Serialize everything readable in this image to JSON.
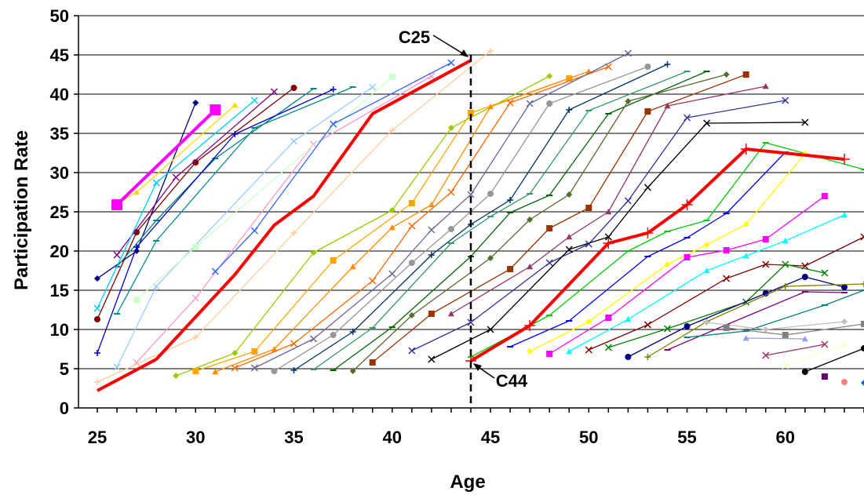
{
  "chart_data": {
    "type": "line",
    "title": "",
    "xlabel": "Age",
    "ylabel": "Participation Rate",
    "xlim": [
      25,
      64
    ],
    "ylim": [
      0,
      50
    ],
    "xticks": [
      25,
      30,
      35,
      40,
      45,
      50,
      55,
      60
    ],
    "yticks": [
      0,
      5,
      10,
      15,
      20,
      25,
      30,
      35,
      40,
      45,
      50
    ],
    "grid": "horizontal",
    "legend": "none",
    "reference_line": {
      "x": 44,
      "style": "dashed",
      "color": "#000000"
    },
    "annotations": [
      {
        "text": "C25",
        "points_to": [
          44,
          44.3
        ]
      },
      {
        "text": "C44",
        "points_to": [
          44,
          6
        ]
      }
    ],
    "series": [
      {
        "color": "#000080",
        "marker": "diamond",
        "points": [
          [
            25,
            16.5
          ],
          [
            27,
            20
          ],
          [
            30,
            38.9
          ]
        ]
      },
      {
        "color": "#FF00FF",
        "marker": "square",
        "points": [
          [
            26,
            25.9
          ],
          [
            31,
            38
          ]
        ],
        "bold": true
      },
      {
        "color": "#FFD700",
        "marker": "triangle",
        "points": [
          [
            26,
            26
          ],
          [
            27,
            27.5
          ],
          [
            32,
            38.6
          ]
        ]
      },
      {
        "color": "#800000",
        "marker": "circle",
        "points": [
          [
            25,
            11.3
          ],
          [
            27,
            22.4
          ],
          [
            30,
            31.3
          ],
          [
            35,
            40.8
          ]
        ]
      },
      {
        "color": "#800080",
        "marker": "x",
        "points": [
          [
            26,
            19.5
          ],
          [
            29,
            29.4
          ],
          [
            34,
            40.3
          ]
        ]
      },
      {
        "color": "#008080",
        "marker": "dash",
        "points": [
          [
            26,
            18
          ],
          [
            28,
            23.9
          ],
          [
            31,
            31.8
          ],
          [
            36,
            40.7
          ]
        ]
      },
      {
        "color": "#00CCFF",
        "marker": "x",
        "points": [
          [
            25,
            12.7
          ],
          [
            28,
            28.7
          ],
          [
            33,
            39.2
          ]
        ]
      },
      {
        "color": "#0000CD",
        "marker": "plus",
        "points": [
          [
            25,
            7
          ],
          [
            27,
            20.5
          ],
          [
            32,
            34.9
          ],
          [
            37,
            40.6
          ]
        ]
      },
      {
        "color": "#008B8B",
        "marker": "dash",
        "points": [
          [
            26,
            12
          ],
          [
            28,
            21.3
          ],
          [
            33,
            35.7
          ],
          [
            38,
            40.9
          ]
        ]
      },
      {
        "color": "#99CCFF",
        "marker": "x",
        "points": [
          [
            26,
            5.2
          ],
          [
            28,
            15.5
          ],
          [
            35,
            34
          ],
          [
            39,
            40.9
          ]
        ]
      },
      {
        "color": "#FF99CC",
        "marker": "x",
        "points": [
          [
            27,
            5.8
          ],
          [
            30,
            14
          ],
          [
            36,
            33.6
          ],
          [
            42,
            42.3
          ]
        ]
      },
      {
        "color": "#CCFFCC",
        "marker": "square",
        "points": [
          [
            27,
            13.8
          ],
          [
            30,
            20.5
          ],
          [
            40,
            42.2
          ]
        ]
      },
      {
        "color": "#FF0000",
        "marker": "none",
        "points": [
          [
            25,
            2.2
          ],
          [
            28,
            6.2
          ],
          [
            32,
            17
          ],
          [
            34,
            23.3
          ],
          [
            36,
            27
          ],
          [
            39,
            37.5
          ],
          [
            44,
            44.3
          ]
        ],
        "bold": true
      },
      {
        "color": "#FFCC99",
        "marker": "plus",
        "points": [
          [
            25,
            3.3
          ],
          [
            30,
            9
          ],
          [
            35,
            22.3
          ],
          [
            40,
            35.4
          ],
          [
            45,
            45.5
          ]
        ]
      },
      {
        "color": "#3366FF",
        "marker": "x",
        "points": [
          [
            31,
            17.4
          ],
          [
            33,
            22.6
          ],
          [
            37,
            36.2
          ],
          [
            43,
            44
          ]
        ]
      },
      {
        "color": "#99CC00",
        "marker": "diamond",
        "points": [
          [
            29,
            4.1
          ],
          [
            32,
            7
          ],
          [
            36,
            19.8
          ],
          [
            40,
            25.2
          ],
          [
            43,
            35.7
          ],
          [
            48,
            42.3
          ]
        ]
      },
      {
        "color": "#FFA500",
        "marker": "square",
        "points": [
          [
            30,
            4.7
          ],
          [
            33,
            7.2
          ],
          [
            37,
            18.8
          ],
          [
            41,
            26.1
          ],
          [
            44,
            37.6
          ],
          [
            49,
            42
          ]
        ]
      },
      {
        "color": "#FF8C00",
        "marker": "triangle",
        "points": [
          [
            31,
            4.6
          ],
          [
            34,
            7.5
          ],
          [
            38,
            18
          ],
          [
            40,
            23
          ],
          [
            42,
            25.9
          ],
          [
            45,
            38.4
          ],
          [
            50,
            42.9
          ]
        ]
      },
      {
        "color": "#FF6600",
        "marker": "x",
        "points": [
          [
            32,
            5.1
          ],
          [
            35,
            8.2
          ],
          [
            39,
            16.2
          ],
          [
            41,
            23.2
          ],
          [
            43,
            27.5
          ],
          [
            46,
            38.9
          ],
          [
            51,
            43.5
          ]
        ]
      },
      {
        "color": "#666699",
        "marker": "x",
        "points": [
          [
            33,
            5.1
          ],
          [
            36,
            8.8
          ],
          [
            40,
            17.1
          ],
          [
            42,
            22.7
          ],
          [
            44,
            27.2
          ],
          [
            47,
            38.8
          ],
          [
            52,
            45.2
          ]
        ]
      },
      {
        "color": "#969696",
        "marker": "circle",
        "points": [
          [
            34,
            4.7
          ],
          [
            37,
            9.3
          ],
          [
            41,
            18.5
          ],
          [
            43,
            22.8
          ],
          [
            45,
            27.3
          ],
          [
            48,
            38.8
          ],
          [
            53,
            43.5
          ]
        ]
      },
      {
        "color": "#003366",
        "marker": "plus",
        "points": [
          [
            35,
            4.8
          ],
          [
            38,
            9.7
          ],
          [
            42,
            19.5
          ],
          [
            44,
            23.4
          ],
          [
            46,
            26.5
          ],
          [
            49,
            38
          ],
          [
            54,
            43.8
          ]
        ]
      },
      {
        "color": "#339966",
        "marker": "dash",
        "points": [
          [
            36,
            4.9
          ],
          [
            39,
            10.2
          ],
          [
            43,
            21
          ],
          [
            45,
            24.4
          ],
          [
            47,
            27.3
          ],
          [
            50,
            37.9
          ],
          [
            55,
            42.9
          ]
        ]
      },
      {
        "color": "#006400",
        "marker": "dash",
        "points": [
          [
            37,
            4.8
          ],
          [
            40,
            10.3
          ],
          [
            44,
            19.3
          ],
          [
            46,
            24.9
          ],
          [
            48,
            27.1
          ],
          [
            51,
            37.5
          ],
          [
            56,
            42.9
          ]
        ]
      },
      {
        "color": "#556B2F",
        "marker": "diamond",
        "points": [
          [
            38,
            4.7
          ],
          [
            41,
            11.8
          ],
          [
            45,
            19.1
          ],
          [
            47,
            24
          ],
          [
            49,
            27.2
          ],
          [
            52,
            39.1
          ],
          [
            57,
            42.5
          ]
        ]
      },
      {
        "color": "#993300",
        "marker": "square",
        "points": [
          [
            39,
            5.8
          ],
          [
            42,
            12
          ],
          [
            46,
            17.7
          ],
          [
            48,
            22.9
          ],
          [
            50,
            25.5
          ],
          [
            53,
            37.8
          ],
          [
            58,
            42.5
          ]
        ]
      },
      {
        "color": "#993366",
        "marker": "triangle",
        "points": [
          [
            43,
            12
          ],
          [
            47,
            18
          ],
          [
            49,
            21.8
          ],
          [
            51,
            25
          ],
          [
            54,
            38.5
          ],
          [
            59,
            41
          ]
        ]
      },
      {
        "color": "#333399",
        "marker": "x",
        "points": [
          [
            41,
            7.3
          ],
          [
            44,
            10.9
          ],
          [
            48,
            18.5
          ],
          [
            50,
            20.9
          ],
          [
            52,
            26.4
          ],
          [
            55,
            37
          ],
          [
            60,
            39.2
          ]
        ]
      },
      {
        "color": "#000000",
        "marker": "x",
        "points": [
          [
            42,
            6.2
          ],
          [
            45,
            10
          ],
          [
            49,
            20.2
          ],
          [
            51,
            21.8
          ],
          [
            53,
            28.1
          ],
          [
            56,
            36.3
          ],
          [
            61,
            36.4
          ]
        ]
      },
      {
        "color": "#FF0000",
        "marker": "plus",
        "points": [
          [
            44,
            6
          ],
          [
            47,
            10.5
          ],
          [
            51,
            21
          ],
          [
            53,
            22.3
          ],
          [
            55,
            25.9
          ],
          [
            58,
            33
          ],
          [
            63,
            31.7
          ]
        ],
        "bold": true
      },
      {
        "color": "#00CC00",
        "marker": "dash",
        "points": [
          [
            44,
            6.5
          ],
          [
            48,
            11.8
          ],
          [
            52,
            20
          ],
          [
            54,
            22.5
          ],
          [
            56,
            23.9
          ],
          [
            59,
            33.8
          ],
          [
            64,
            30.4
          ]
        ]
      },
      {
        "color": "#0000FF",
        "marker": "dash",
        "points": [
          [
            46,
            7.8
          ],
          [
            49,
            11.1
          ],
          [
            53,
            19.3
          ],
          [
            55,
            21.7
          ],
          [
            57,
            24.8
          ],
          [
            60,
            32.6
          ]
        ]
      },
      {
        "color": "#FFFF00",
        "marker": "diamond",
        "points": [
          [
            47,
            7.2
          ],
          [
            50,
            11
          ],
          [
            54,
            18.3
          ],
          [
            56,
            20.8
          ],
          [
            58,
            23.4
          ],
          [
            61,
            32.4
          ]
        ]
      },
      {
        "color": "#FF00FF",
        "marker": "square",
        "points": [
          [
            48,
            6.9
          ],
          [
            51,
            11.5
          ],
          [
            55,
            19.2
          ],
          [
            57,
            20.1
          ],
          [
            59,
            21.5
          ],
          [
            62,
            27
          ]
        ]
      },
      {
        "color": "#00FFFF",
        "marker": "triangle",
        "points": [
          [
            49,
            7.2
          ],
          [
            52,
            11.3
          ],
          [
            56,
            17.5
          ],
          [
            58,
            19.4
          ],
          [
            60,
            21.3
          ],
          [
            63,
            24.6
          ]
        ]
      },
      {
        "color": "#800000",
        "marker": "x",
        "points": [
          [
            50,
            7.4
          ],
          [
            53,
            10.6
          ],
          [
            57,
            16.5
          ],
          [
            59,
            18.3
          ],
          [
            61,
            18.1
          ],
          [
            64,
            21.8
          ]
        ]
      },
      {
        "color": "#008000",
        "marker": "x",
        "points": [
          [
            51,
            7.7
          ],
          [
            54,
            10.1
          ],
          [
            58,
            13.5
          ],
          [
            60,
            18.3
          ],
          [
            62,
            17.2
          ]
        ]
      },
      {
        "color": "#000080",
        "marker": "circle",
        "points": [
          [
            52,
            6.5
          ],
          [
            55,
            10.4
          ],
          [
            59,
            14.6
          ],
          [
            61,
            16.7
          ],
          [
            63,
            15.4
          ]
        ]
      },
      {
        "color": "#808000",
        "marker": "plus",
        "points": [
          [
            53,
            6.5
          ],
          [
            56,
            11
          ],
          [
            60,
            15.5
          ],
          [
            64,
            15.8
          ]
        ]
      },
      {
        "color": "#800080",
        "marker": "dash",
        "points": [
          [
            54,
            7.4
          ],
          [
            57,
            10.6
          ],
          [
            61,
            14.8
          ],
          [
            63,
            14.7
          ]
        ]
      },
      {
        "color": "#008080",
        "marker": "dash",
        "points": [
          [
            55,
            9
          ],
          [
            58,
            9.8
          ],
          [
            62,
            13.1
          ],
          [
            64,
            15
          ]
        ]
      },
      {
        "color": "#C0C0C0",
        "marker": "diamond",
        "points": [
          [
            56,
            10.9
          ],
          [
            59,
            10
          ],
          [
            63,
            11
          ]
        ]
      },
      {
        "color": "#808080",
        "marker": "square",
        "points": [
          [
            57,
            10.2
          ],
          [
            60,
            9.3
          ],
          [
            64,
            10.7
          ]
        ]
      },
      {
        "color": "#9999FF",
        "marker": "triangle",
        "points": [
          [
            58,
            8.9
          ],
          [
            61,
            8.8
          ]
        ]
      },
      {
        "color": "#993366",
        "marker": "x",
        "points": [
          [
            59,
            6.7
          ],
          [
            62,
            8.1
          ]
        ]
      },
      {
        "color": "#FFFFCC",
        "marker": "x",
        "points": [
          [
            60,
            5.4
          ],
          [
            63,
            8
          ]
        ]
      },
      {
        "color": "#000000",
        "marker": "circle",
        "points": [
          [
            61,
            4.6
          ],
          [
            64,
            7.6
          ]
        ]
      },
      {
        "color": "#660066",
        "marker": "square",
        "points": [
          [
            62,
            4
          ]
        ]
      },
      {
        "color": "#FF8080",
        "marker": "circle",
        "points": [
          [
            63,
            3.3
          ]
        ]
      },
      {
        "color": "#0066CC",
        "marker": "diamond",
        "points": [
          [
            64,
            3.2
          ]
        ]
      }
    ]
  }
}
